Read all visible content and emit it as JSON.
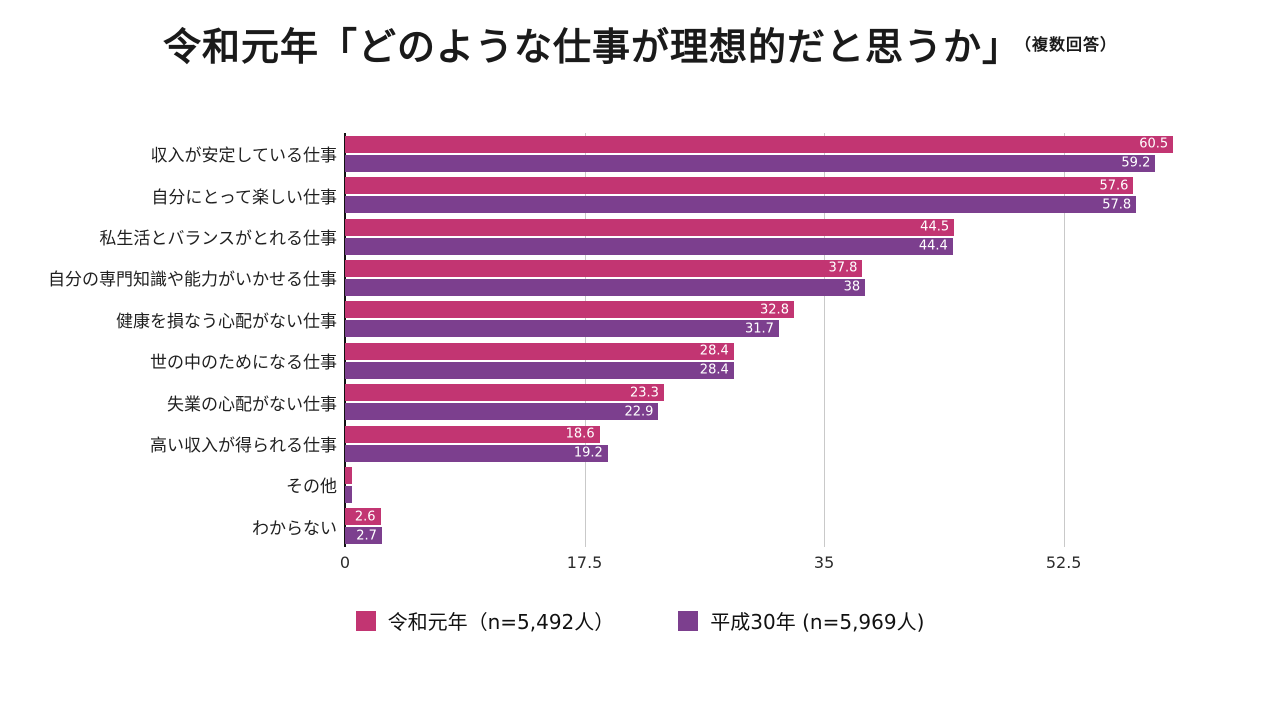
{
  "title": {
    "main": "令和元年「どのような仕事が理想的だと思うか」",
    "note": "（複数回答）"
  },
  "chart_data": {
    "type": "bar",
    "orientation": "horizontal",
    "title": "令和元年「どのような仕事が理想的だと思うか」",
    "subtitle": "（複数回答）",
    "categories": [
      "収入が安定している仕事",
      "自分にとって楽しい仕事",
      "私生活とバランスがとれる仕事",
      "自分の専門知識や能力がいかせる仕事",
      "健康を損なう心配がない仕事",
      "世の中のためになる仕事",
      "失業の心配がない仕事",
      "高い収入が得られる仕事",
      "その他",
      "わからない"
    ],
    "series": [
      {
        "name": "令和元年（n=5,492人）",
        "color": "#c23572",
        "values": [
          60.5,
          57.6,
          44.5,
          37.8,
          32.8,
          28.4,
          23.3,
          18.6,
          0.5,
          2.6
        ],
        "labels": [
          "60.5",
          "57.6",
          "44.5",
          "37.8",
          "32.8",
          "28.4",
          "23.3",
          "18.6",
          "",
          "2.6"
        ]
      },
      {
        "name": "平成30年 (n=5,969人)",
        "color": "#7c3f8e",
        "values": [
          59.2,
          57.8,
          44.4,
          38,
          31.7,
          28.4,
          22.9,
          19.2,
          0.5,
          2.7
        ],
        "labels": [
          "59.2",
          "57.8",
          "44.4",
          "38",
          "31.7",
          "28.4",
          "22.9",
          "19.2",
          "",
          "2.7"
        ]
      }
    ],
    "xticks": [
      "0",
      "17.5",
      "35",
      "52.5"
    ],
    "xtick_values": [
      0,
      17.5,
      35,
      52.5
    ],
    "xlim": [
      0,
      61
    ],
    "grid": true,
    "legend_position": "bottom"
  }
}
